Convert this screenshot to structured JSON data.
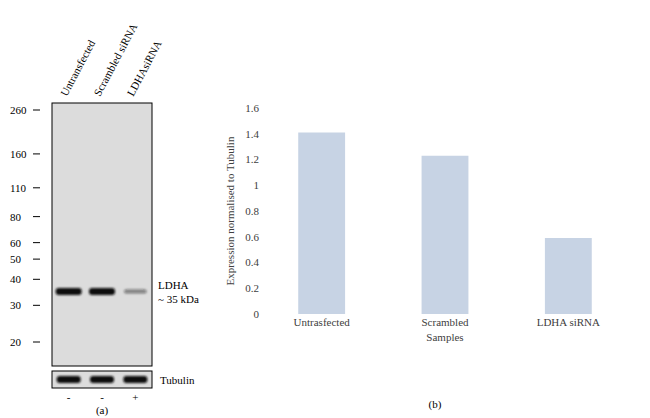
{
  "chart_data": {
    "type": "bar",
    "panel": "(b)",
    "categories": [
      "Untrasfected",
      "Scrambled",
      "LDHA siRNA"
    ],
    "values": [
      1.41,
      1.23,
      0.59
    ],
    "color": "#c7d3e4",
    "xlabel": "Samples",
    "ylabel": "Expression normalised to Tubulin",
    "ylim": [
      0,
      1.6
    ],
    "yticks": [
      0,
      0.2,
      0.4,
      0.6,
      0.8,
      1,
      1.2,
      1.4,
      1.6
    ],
    "grid": false
  },
  "blot": {
    "panel": "(a)",
    "lanes": [
      "Untransfected",
      "Scrambled siRNA",
      "LDHAsiRNA"
    ],
    "markers_kda": [
      260,
      160,
      110,
      80,
      60,
      50,
      40,
      30,
      20
    ],
    "band": {
      "label": "LDHA",
      "size_label": "~ 35 kDa",
      "kda": 35,
      "strength": [
        1,
        1,
        0.45
      ]
    },
    "loading_control": {
      "label": "Tubulin",
      "strength": [
        1,
        1,
        1
      ]
    },
    "sirna": [
      "-",
      "-",
      "+"
    ]
  }
}
